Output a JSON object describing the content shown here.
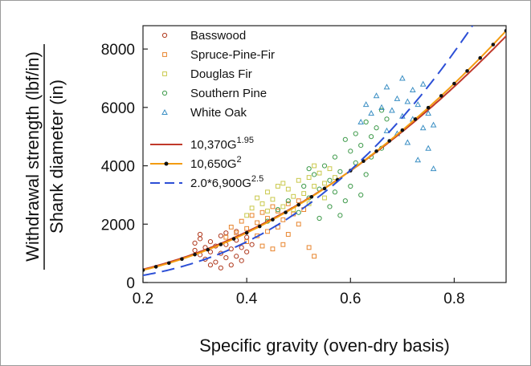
{
  "chart_data": {
    "type": "scatter",
    "xlabel": "Specific gravity (oven-dry basis)",
    "ylabel_top": "Withdrawal strength (lbf/in)",
    "ylabel_bottom": "Shank diameter (in)",
    "xlim": [
      0.2,
      0.9
    ],
    "ylim": [
      0,
      8800
    ],
    "x_ticks": [
      0.2,
      0.4,
      0.6,
      0.8
    ],
    "x_tick_labels": [
      "0.2",
      "0.4",
      "0.6",
      "0.8"
    ],
    "y_ticks": [
      0,
      2000,
      4000,
      6000,
      8000
    ],
    "y_tick_labels": [
      "0",
      "2000",
      "4000",
      "6000",
      "8000"
    ],
    "grid": false,
    "legend_position": "top-left",
    "scatter_series": [
      {
        "name": "Basswood",
        "marker": "circle",
        "color": "#b03a1e",
        "points": [
          [
            0.3,
            1100
          ],
          [
            0.3,
            1350
          ],
          [
            0.31,
            950
          ],
          [
            0.31,
            1500
          ],
          [
            0.32,
            1200
          ],
          [
            0.32,
            800
          ],
          [
            0.33,
            1050
          ],
          [
            0.33,
            1400
          ],
          [
            0.34,
            700
          ],
          [
            0.34,
            1250
          ],
          [
            0.35,
            1600
          ],
          [
            0.35,
            1000
          ],
          [
            0.36,
            850
          ],
          [
            0.36,
            1300
          ],
          [
            0.37,
            1150
          ],
          [
            0.37,
            600
          ],
          [
            0.38,
            1450
          ],
          [
            0.38,
            900
          ],
          [
            0.39,
            1200
          ],
          [
            0.39,
            750
          ],
          [
            0.4,
            1550
          ],
          [
            0.4,
            1050
          ],
          [
            0.41,
            1300
          ],
          [
            0.36,
            1700
          ],
          [
            0.33,
            600
          ],
          [
            0.35,
            500
          ],
          [
            0.31,
            1650
          ],
          [
            0.38,
            1750
          ]
        ]
      },
      {
        "name": "Spruce-Pine-Fir",
        "marker": "square",
        "color": "#e8842c",
        "points": [
          [
            0.36,
            1550
          ],
          [
            0.37,
            1900
          ],
          [
            0.38,
            1700
          ],
          [
            0.39,
            2100
          ],
          [
            0.4,
            1850
          ],
          [
            0.41,
            2300
          ],
          [
            0.42,
            1600
          ],
          [
            0.42,
            2050
          ],
          [
            0.43,
            2400
          ],
          [
            0.44,
            1750
          ],
          [
            0.44,
            2200
          ],
          [
            0.45,
            2600
          ],
          [
            0.46,
            1900
          ],
          [
            0.46,
            2450
          ],
          [
            0.47,
            2150
          ],
          [
            0.48,
            2700
          ],
          [
            0.48,
            1650
          ],
          [
            0.49,
            2350
          ],
          [
            0.5,
            2000
          ],
          [
            0.5,
            2800
          ],
          [
            0.51,
            2500
          ],
          [
            0.52,
            1200
          ],
          [
            0.53,
            900
          ],
          [
            0.47,
            1300
          ],
          [
            0.43,
            1250
          ],
          [
            0.45,
            1150
          ],
          [
            0.4,
            1400
          ]
        ]
      },
      {
        "name": "Douglas Fir",
        "marker": "square",
        "color": "#c9c84a",
        "points": [
          [
            0.4,
            2300
          ],
          [
            0.41,
            2550
          ],
          [
            0.42,
            2900
          ],
          [
            0.43,
            2700
          ],
          [
            0.44,
            3100
          ],
          [
            0.45,
            2850
          ],
          [
            0.46,
            3300
          ],
          [
            0.47,
            2600
          ],
          [
            0.48,
            3200
          ],
          [
            0.49,
            2950
          ],
          [
            0.5,
            3500
          ],
          [
            0.51,
            3050
          ],
          [
            0.52,
            3600
          ],
          [
            0.53,
            3300
          ],
          [
            0.54,
            3750
          ],
          [
            0.55,
            3400
          ],
          [
            0.56,
            3900
          ],
          [
            0.44,
            2450
          ],
          [
            0.49,
            2500
          ],
          [
            0.52,
            2700
          ],
          [
            0.55,
            2900
          ],
          [
            0.47,
            3400
          ],
          [
            0.53,
            4000
          ],
          [
            0.57,
            3600
          ]
        ]
      },
      {
        "name": "Southern Pine",
        "marker": "circle",
        "color": "#3e9a4a",
        "points": [
          [
            0.44,
            2100
          ],
          [
            0.46,
            2500
          ],
          [
            0.48,
            2800
          ],
          [
            0.5,
            2400
          ],
          [
            0.51,
            3300
          ],
          [
            0.52,
            2900
          ],
          [
            0.53,
            3700
          ],
          [
            0.54,
            3200
          ],
          [
            0.55,
            4000
          ],
          [
            0.56,
            3500
          ],
          [
            0.57,
            4300
          ],
          [
            0.58,
            3800
          ],
          [
            0.59,
            2800
          ],
          [
            0.6,
            4500
          ],
          [
            0.6,
            3300
          ],
          [
            0.61,
            4100
          ],
          [
            0.62,
            3000
          ],
          [
            0.62,
            4700
          ],
          [
            0.63,
            3700
          ],
          [
            0.64,
            5000
          ],
          [
            0.64,
            4300
          ],
          [
            0.65,
            5300
          ],
          [
            0.66,
            4600
          ],
          [
            0.67,
            5600
          ],
          [
            0.56,
            2600
          ],
          [
            0.58,
            2300
          ],
          [
            0.54,
            2200
          ],
          [
            0.61,
            5100
          ],
          [
            0.63,
            5500
          ],
          [
            0.59,
            4900
          ],
          [
            0.66,
            5900
          ],
          [
            0.52,
            3900
          ],
          [
            0.57,
            3100
          ]
        ]
      },
      {
        "name": "White Oak",
        "marker": "triangle",
        "color": "#3b8fc4",
        "points": [
          [
            0.62,
            5500
          ],
          [
            0.63,
            6100
          ],
          [
            0.64,
            5800
          ],
          [
            0.65,
            6400
          ],
          [
            0.66,
            6000
          ],
          [
            0.67,
            6700
          ],
          [
            0.68,
            5900
          ],
          [
            0.69,
            6300
          ],
          [
            0.7,
            7000
          ],
          [
            0.7,
            5700
          ],
          [
            0.71,
            6200
          ],
          [
            0.72,
            5600
          ],
          [
            0.72,
            6600
          ],
          [
            0.73,
            6100
          ],
          [
            0.74,
            5300
          ],
          [
            0.75,
            5800
          ],
          [
            0.75,
            4600
          ],
          [
            0.76,
            5400
          ],
          [
            0.76,
            3900
          ],
          [
            0.73,
            4200
          ],
          [
            0.71,
            4800
          ],
          [
            0.69,
            5100
          ],
          [
            0.67,
            5200
          ],
          [
            0.74,
            6800
          ]
        ]
      }
    ],
    "line_series": [
      {
        "name": "10,370G",
        "exponent_label": "1.95",
        "color": "#c0392b",
        "style": "solid",
        "formula": {
          "coef": 10370,
          "exp": 1.95
        }
      },
      {
        "name": "10,650G",
        "exponent_label": "2",
        "color": "#f39c12",
        "style": "solid-dots",
        "formula": {
          "coef": 10650,
          "exp": 2
        }
      },
      {
        "name": "2.0*6,900G",
        "exponent_label": "2.5",
        "color": "#2c4fd6",
        "style": "dashed",
        "formula": {
          "coef": 13800,
          "exp": 2.5
        }
      }
    ]
  }
}
